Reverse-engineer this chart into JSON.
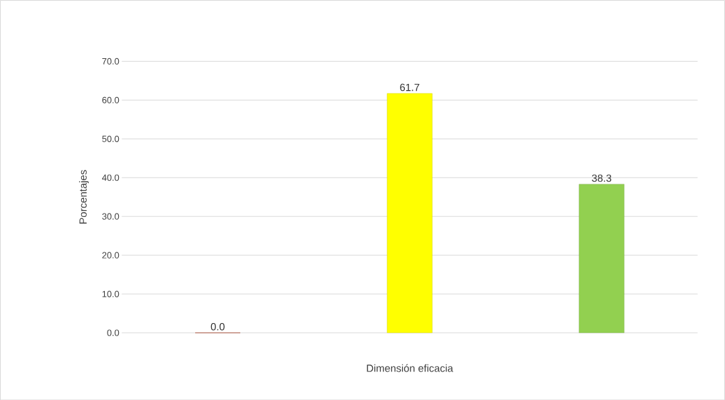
{
  "chart_data": {
    "type": "bar",
    "xlabel": "Dimensión eficacia",
    "ylabel": "Porcentajes",
    "categories": [
      null,
      null,
      null
    ],
    "values": [
      0.0,
      61.7,
      38.3
    ],
    "colors": [
      "#c32b00",
      "#ffff00",
      "#92d050"
    ],
    "value_labels": [
      "0.0",
      "61.7",
      "38.3"
    ],
    "ylim": [
      0,
      70
    ],
    "yticks": [
      {
        "value": 0,
        "label": "0.0"
      },
      {
        "value": 10,
        "label": "10.0"
      },
      {
        "value": 20,
        "label": "20.0"
      },
      {
        "value": 30,
        "label": "30.0"
      },
      {
        "value": 40,
        "label": "40.0"
      },
      {
        "value": 50,
        "label": "50.0"
      },
      {
        "value": 60,
        "label": "60.0"
      },
      {
        "value": 70,
        "label": "70.0"
      }
    ],
    "grid": "y"
  }
}
